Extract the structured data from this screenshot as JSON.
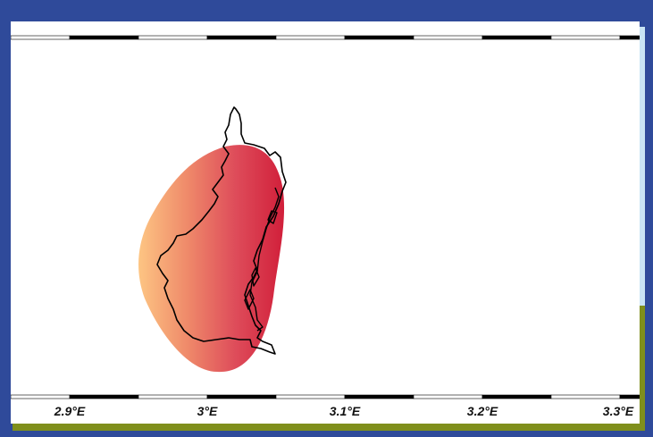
{
  "map": {
    "kind": "coastline-extent-map",
    "frame_colors": {
      "border": "#2f4a9a",
      "accent_light": "#c9e4f5",
      "accent_olive": "#7f8f1c",
      "panel": "#ffffff"
    },
    "x_axis": {
      "ticks": [
        {
          "value": 2.9,
          "label": "2.9°E"
        },
        {
          "value": 3.0,
          "label": "3°E"
        },
        {
          "value": 3.1,
          "label": "3.1°E"
        },
        {
          "value": 3.2,
          "label": "3.2°E"
        },
        {
          "value": 3.3,
          "label": "3.3°E"
        }
      ]
    },
    "shaded_area": {
      "gradient_colors": [
        "#fdc583",
        "#ef8a6a",
        "#de4c5a",
        "#d11f3a"
      ],
      "gradient_direction": "west-to-east"
    },
    "coastline_color": "#000000"
  }
}
